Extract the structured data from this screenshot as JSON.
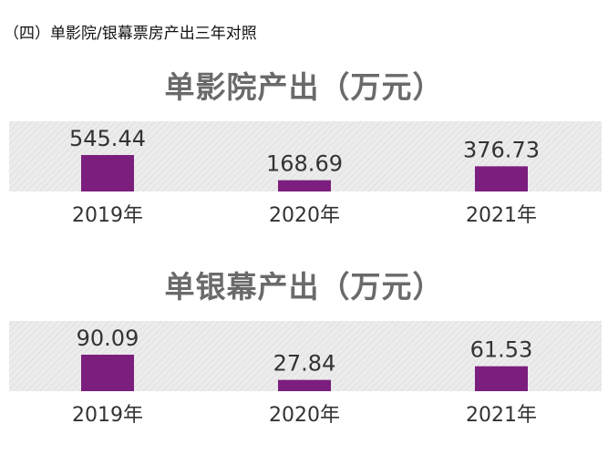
{
  "page": {
    "heading": "（四）单影院/银幕票房产出三年对照"
  },
  "colors": {
    "bar": "#7b1e7e",
    "band": "#ececec",
    "title": "#6a6a6a"
  },
  "chart_data": [
    {
      "type": "bar",
      "title": "单影院产出（万元）",
      "categories": [
        "2019年",
        "2020年",
        "2021年"
      ],
      "values": [
        545.44,
        168.69,
        376.73
      ],
      "value_labels": [
        "545.44",
        "168.69",
        "376.73"
      ],
      "ylim": [
        0,
        545.44
      ],
      "grid": false,
      "legend": "none"
    },
    {
      "type": "bar",
      "title": "单银幕产出（万元）",
      "categories": [
        "2019年",
        "2020年",
        "2021年"
      ],
      "values": [
        90.09,
        27.84,
        61.53
      ],
      "value_labels": [
        "90.09",
        "27.84",
        "61.53"
      ],
      "ylim": [
        0,
        90.09
      ],
      "grid": false,
      "legend": "none"
    }
  ]
}
